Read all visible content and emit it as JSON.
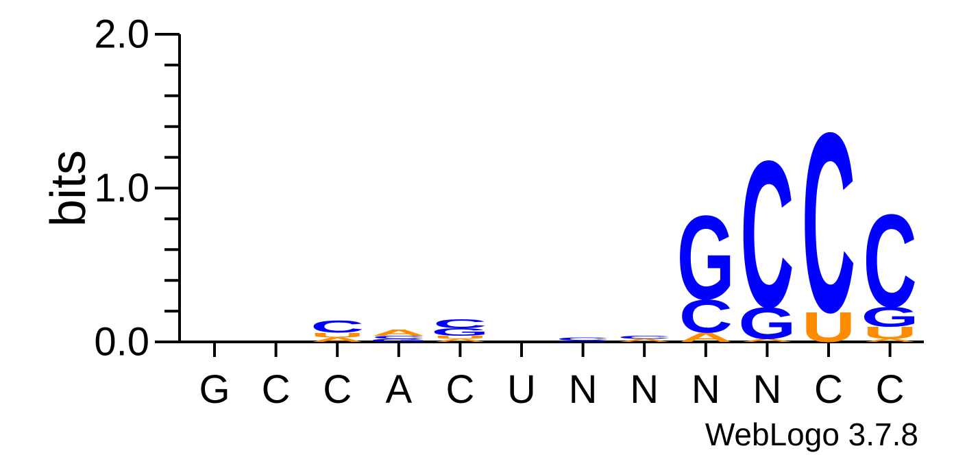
{
  "chart_data": {
    "type": "sequence-logo",
    "ylabel": "bits",
    "ylim": [
      0,
      2
    ],
    "yticks": [
      "0.0",
      "1.0",
      "2.0"
    ],
    "colors": {
      "G": "#0000ff",
      "C": "#0000ff",
      "A": "#ff8c00",
      "U": "#ff8c00"
    },
    "positions": [
      {
        "label": "G",
        "stack": []
      },
      {
        "label": "C",
        "stack": []
      },
      {
        "label": "C",
        "stack": [
          {
            "base": "A",
            "height": 0.03
          },
          {
            "base": "U",
            "height": 0.03
          },
          {
            "base": "C",
            "height": 0.08
          }
        ]
      },
      {
        "label": "A",
        "stack": [
          {
            "base": "G",
            "height": 0.02
          },
          {
            "base": "C",
            "height": 0.02
          },
          {
            "base": "A",
            "height": 0.04
          }
        ]
      },
      {
        "label": "C",
        "stack": [
          {
            "base": "A",
            "height": 0.02
          },
          {
            "base": "U",
            "height": 0.02
          },
          {
            "base": "G",
            "height": 0.05
          },
          {
            "base": "C",
            "height": 0.06
          }
        ]
      },
      {
        "label": "U",
        "stack": []
      },
      {
        "label": "N",
        "stack": [
          {
            "base": "G",
            "height": 0.01
          },
          {
            "base": "C",
            "height": 0.02
          }
        ]
      },
      {
        "label": "N",
        "stack": [
          {
            "base": "A",
            "height": 0.02
          },
          {
            "base": "C",
            "height": 0.02
          }
        ]
      },
      {
        "label": "N",
        "stack": [
          {
            "base": "A",
            "height": 0.06
          },
          {
            "base": "C",
            "height": 0.22
          },
          {
            "base": "G",
            "height": 0.56
          }
        ]
      },
      {
        "label": "N",
        "stack": [
          {
            "base": "A",
            "height": 0.02
          },
          {
            "base": "G",
            "height": 0.21
          },
          {
            "base": "C",
            "height": 0.98
          }
        ]
      },
      {
        "label": "C",
        "stack": [
          {
            "base": "U",
            "height": 0.2
          },
          {
            "base": "C",
            "height": 1.2
          }
        ]
      },
      {
        "label": "C",
        "stack": [
          {
            "base": "A",
            "height": 0.02
          },
          {
            "base": "U",
            "height": 0.08
          },
          {
            "base": "G",
            "height": 0.13
          },
          {
            "base": "C",
            "height": 0.62
          }
        ]
      }
    ]
  },
  "footer": {
    "credit": "WebLogo 3.7.8"
  }
}
